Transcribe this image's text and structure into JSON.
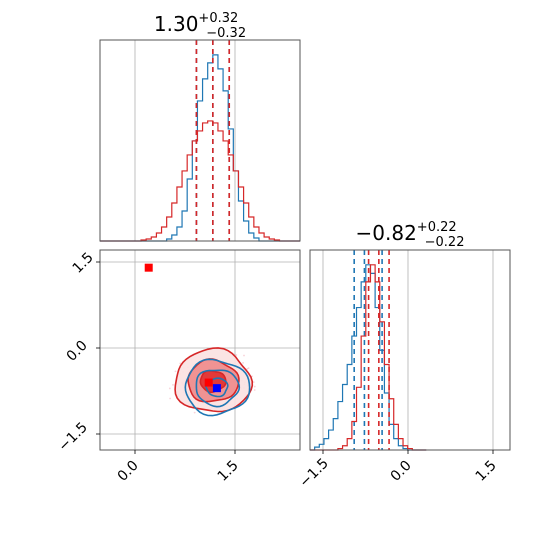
{
  "chart_data": [
    {
      "panel": "top-left",
      "type": "histogram",
      "title": {
        "value": "1.30",
        "plus": "+0.32",
        "minus": "−0.32"
      },
      "xlim": [
        -0.9,
        3.0
      ],
      "series": [
        {
          "color": "#1f77b4",
          "edges": [
            -0.9,
            -0.8,
            -0.7,
            -0.6,
            -0.5,
            -0.4,
            -0.3,
            -0.2,
            -0.1,
            0.0,
            0.1,
            0.2,
            0.3,
            0.4,
            0.5,
            0.6,
            0.7,
            0.8,
            0.9,
            1.0,
            1.1,
            1.2,
            1.3,
            1.4,
            1.5,
            1.6,
            1.7,
            1.8,
            1.9,
            2.0,
            2.1,
            2.2,
            2.3,
            2.4,
            2.5,
            2.6,
            2.7,
            2.8,
            2.9,
            3.0
          ],
          "counts": [
            0,
            0,
            0,
            0,
            0,
            0,
            0,
            0,
            0,
            0,
            0,
            0,
            0,
            2,
            6,
            14,
            30,
            62,
            100,
            140,
            162,
            178,
            186,
            172,
            150,
            112,
            70,
            40,
            20,
            8,
            3,
            0,
            0,
            0,
            0,
            0,
            0,
            0,
            0
          ],
          "quantile_lines": [
            0.98,
            1.3,
            1.62
          ]
        },
        {
          "color": "#d62728",
          "edges": [
            -0.9,
            -0.8,
            -0.7,
            -0.6,
            -0.5,
            -0.4,
            -0.3,
            -0.2,
            -0.1,
            0.0,
            0.1,
            0.2,
            0.3,
            0.4,
            0.5,
            0.6,
            0.7,
            0.8,
            0.9,
            1.0,
            1.1,
            1.2,
            1.3,
            1.4,
            1.5,
            1.6,
            1.7,
            1.8,
            1.9,
            2.0,
            2.1,
            2.2,
            2.3,
            2.4,
            2.5,
            2.6,
            2.7,
            2.8,
            2.9,
            3.0
          ],
          "counts": [
            0,
            0,
            0,
            0,
            0,
            0,
            0,
            0,
            1,
            2,
            4,
            8,
            14,
            24,
            38,
            54,
            70,
            86,
            100,
            110,
            118,
            120,
            118,
            110,
            100,
            86,
            70,
            54,
            38,
            24,
            14,
            8,
            4,
            2,
            1,
            0,
            0,
            0,
            0
          ],
          "quantile_lines": [
            0.98,
            1.3,
            1.62
          ]
        }
      ]
    },
    {
      "panel": "bottom-left",
      "type": "contour",
      "xlim": [
        -0.9,
        3.0
      ],
      "ylim": [
        -2.3,
        2.0
      ],
      "xticks": [
        "0.0",
        "1.5"
      ],
      "yticks": [
        "1.5",
        "0.0",
        "−1.5"
      ],
      "contours": [
        {
          "color": "#d62728",
          "center": [
            1.3,
            -0.82
          ],
          "sigma": [
            0.45,
            0.3
          ],
          "levels": [
            1.0,
            2.0,
            3.0
          ],
          "filled": true
        },
        {
          "color": "#1f77b4",
          "center": [
            1.38,
            -0.95
          ],
          "sigma": [
            0.38,
            0.26
          ],
          "levels": [
            1.0,
            2.0,
            3.0
          ],
          "filled": false
        }
      ],
      "markers": [
        {
          "color": "#ff0000",
          "x": 0.05,
          "y": 1.62
        },
        {
          "color": "#ff0000",
          "x": 1.22,
          "y": -0.85
        },
        {
          "color": "#0000ff",
          "x": 1.38,
          "y": -0.97
        }
      ]
    },
    {
      "panel": "bottom-right",
      "type": "histogram",
      "title": {
        "value": "−0.82",
        "plus": "+0.22",
        "minus": "−0.22"
      },
      "xlim": [
        -2.3,
        2.0
      ],
      "xticks": [
        "−1.5",
        "0.0",
        "1.5"
      ],
      "series": [
        {
          "color": "#1f77b4",
          "edges": [
            -2.3,
            -2.2,
            -2.1,
            -2.0,
            -1.9,
            -1.8,
            -1.7,
            -1.6,
            -1.5,
            -1.4,
            -1.3,
            -1.2,
            -1.1,
            -1.0,
            -0.9,
            -0.8,
            -0.7,
            -0.6,
            -0.5,
            -0.4,
            -0.3,
            -0.2,
            -0.1,
            0.0,
            0.1,
            0.2
          ],
          "counts": [
            0,
            2,
            4,
            8,
            14,
            22,
            34,
            46,
            60,
            80,
            100,
            118,
            130,
            124,
            100,
            70,
            40,
            18,
            8,
            3,
            1,
            0,
            0,
            0,
            0
          ],
          "quantile_lines": [
            -1.35,
            -1.13,
            -0.75
          ]
        },
        {
          "color": "#d62728",
          "edges": [
            -2.3,
            -2.2,
            -2.1,
            -2.0,
            -1.9,
            -1.8,
            -1.7,
            -1.6,
            -1.5,
            -1.4,
            -1.3,
            -1.2,
            -1.1,
            -1.0,
            -0.9,
            -0.8,
            -0.7,
            -0.6,
            -0.5,
            -0.4,
            -0.3,
            -0.2,
            -0.1,
            0.0,
            0.1,
            0.2
          ],
          "counts": [
            0,
            0,
            0,
            0,
            0,
            0,
            1,
            3,
            8,
            20,
            44,
            80,
            118,
            130,
            118,
            90,
            60,
            36,
            18,
            8,
            3,
            1,
            0,
            0,
            0
          ],
          "quantile_lines": [
            -1.04,
            -0.82,
            -0.6
          ]
        }
      ]
    }
  ]
}
